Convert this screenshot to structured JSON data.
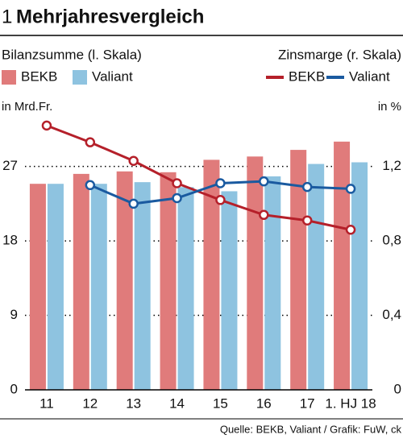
{
  "chart_data": {
    "type": "bar",
    "number": "1",
    "title": "Mehrjahresvergleich",
    "left_legend_title": "Bilanzsumme (l. Skala)",
    "right_legend_title": "Zinsmarge (r. Skala)",
    "y_unit": "in Mrd.Fr.",
    "y2_unit": "in %",
    "source": "Quelle: BEKB, Valiant / Grafik: FuW, ck",
    "categories": [
      "11",
      "12",
      "13",
      "14",
      "15",
      "16",
      "17",
      "1. HJ 18"
    ],
    "series": [
      {
        "name": "BEKB",
        "type": "bar",
        "color": "#e07b7b",
        "values": [
          24.9,
          26.1,
          26.4,
          26.3,
          27.8,
          28.2,
          29.0,
          30.0
        ]
      },
      {
        "name": "Valiant",
        "type": "bar",
        "color": "#8ec3e0",
        "values": [
          24.9,
          24.9,
          25.1,
          24.5,
          24.0,
          25.8,
          27.3,
          27.5
        ]
      },
      {
        "name": "BEKB",
        "type": "line",
        "axis": "y2",
        "color": "#b5202a",
        "values": [
          1.42,
          1.33,
          1.23,
          1.11,
          1.02,
          0.94,
          0.91,
          0.86
        ]
      },
      {
        "name": "Valiant",
        "type": "line",
        "axis": "y2",
        "color": "#1a5aa0",
        "values": [
          null,
          1.1,
          1.0,
          1.03,
          1.11,
          1.12,
          1.09,
          1.08
        ]
      }
    ],
    "ylim": [
      0,
      33
    ],
    "yticks": [
      0,
      9,
      18,
      27
    ],
    "y2lim": [
      0,
      1.467
    ],
    "y2ticks": [
      0,
      {
        "value": 0.4,
        "label": "0,4"
      },
      {
        "value": 0.8,
        "label": "0,8"
      },
      {
        "value": 1.2,
        "label": "1,2"
      }
    ],
    "grid": true
  }
}
